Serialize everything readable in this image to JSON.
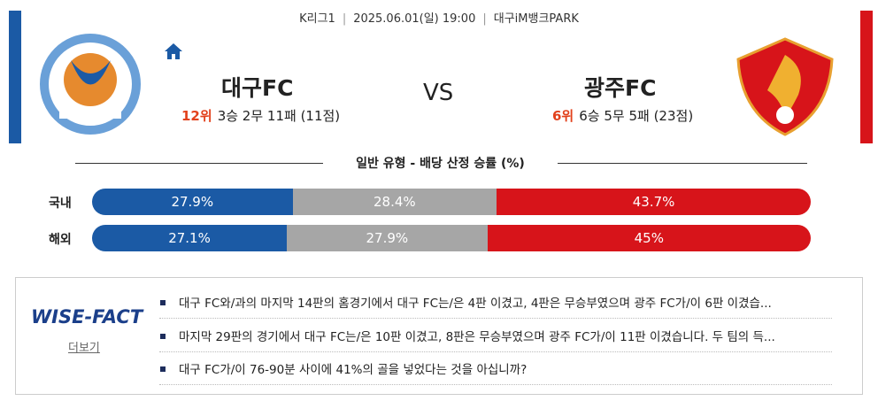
{
  "header": {
    "league": "K리그1",
    "datetime": "2025.06.01(일) 19:00",
    "venue": "대구iM뱅크PARK"
  },
  "home": {
    "name": "대구FC",
    "rank": "12위",
    "record": "3승 2무 11패 (11점)",
    "color": "#1b5aa5"
  },
  "vs": "VS",
  "away": {
    "name": "광주FC",
    "rank": "6위",
    "record": "6승 5무 5패 (23점)",
    "color": "#d7141a"
  },
  "odds": {
    "title": "일반 유형 - 배당 산정 승률 (%)",
    "colors": [
      "#1b5aa5",
      "#a6a6a6",
      "#d7141a"
    ],
    "rows": [
      {
        "label": "국내",
        "values": [
          27.9,
          28.4,
          43.7
        ],
        "value_labels": [
          "27.9%",
          "28.4%",
          "43.7%"
        ]
      },
      {
        "label": "해외",
        "values": [
          27.1,
          27.9,
          45
        ],
        "value_labels": [
          "27.1%",
          "27.9%",
          "45%"
        ]
      }
    ]
  },
  "wise_fact": {
    "logo": "WISE-FACT",
    "more": "더보기",
    "facts": [
      "대구 FC와/과의 마지막 14판의 홈경기에서 대구 FC는/은 4판 이겼고, 4판은 무승부였으며 광주 FC가/이 6판 이겼습...",
      "마지막 29판의 경기에서 대구 FC는/은 10판 이겼고, 8판은 무승부였으며 광주 FC가/이 11판 이겼습니다. 두 팀의 득...",
      "대구 FC가/이 76-90분 사이에 41%의 골을 넣었다는 것을 아십니까?"
    ]
  }
}
